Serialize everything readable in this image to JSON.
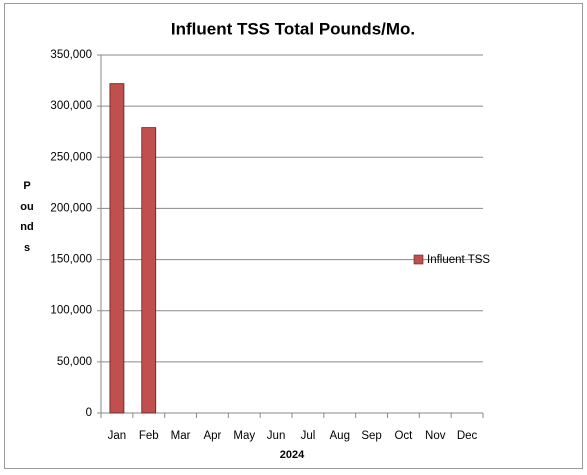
{
  "chart_data": {
    "type": "bar",
    "title": "Influent TSS Total Pounds/Mo.",
    "x_label": "2024",
    "y_label": "Pounds",
    "categories": [
      "Jan",
      "Feb",
      "Mar",
      "Apr",
      "May",
      "Jun",
      "Jul",
      "Aug",
      "Sep",
      "Oct",
      "Nov",
      "Dec"
    ],
    "series": [
      {
        "name": "Influent TSS",
        "color": "#c0504d",
        "values": [
          322000,
          279000,
          null,
          null,
          null,
          null,
          null,
          null,
          null,
          null,
          null,
          null
        ]
      }
    ],
    "ylim": [
      0,
      350000
    ],
    "yticks": [
      0,
      {
        "value": 50000,
        "label": "50,000"
      },
      {
        "value": 100000,
        "label": "100,000"
      },
      {
        "value": 150000,
        "label": "150,000"
      },
      {
        "value": 200000,
        "label": "200,000"
      },
      {
        "value": 250000,
        "label": "250,000"
      },
      {
        "value": 300000,
        "label": "300,000"
      },
      {
        "value": 350000,
        "label": "350,000"
      }
    ],
    "grid": true,
    "legend": "right"
  }
}
